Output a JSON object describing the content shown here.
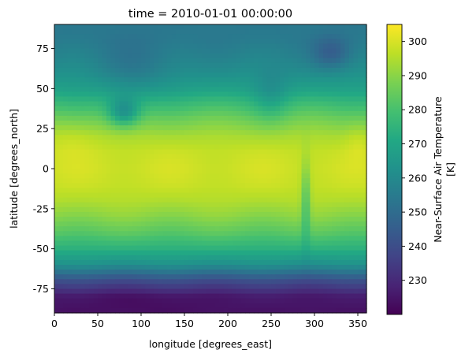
{
  "chart_data": {
    "type": "heatmap",
    "title": "time = 2010-01-01 00:00:00",
    "xlabel": "longitude [degrees_east]",
    "ylabel": "latitude [degrees_north]",
    "xlim": [
      0,
      360
    ],
    "ylim": [
      -90,
      90
    ],
    "xticks": [
      0,
      50,
      100,
      150,
      200,
      250,
      300,
      350
    ],
    "yticks": [
      -75,
      -50,
      -25,
      0,
      25,
      50,
      75
    ],
    "colorbar": {
      "label_line1": "Near-Surface Air Temperature",
      "label_line2": "[K]",
      "range": [
        220,
        305
      ],
      "ticks": [
        230,
        240,
        250,
        260,
        270,
        280,
        290,
        300
      ],
      "colormap": "viridis"
    },
    "zonal_profile": {
      "lat": [
        -90,
        -80,
        -70,
        -60,
        -50,
        -40,
        -30,
        -20,
        -10,
        0,
        10,
        20,
        30,
        40,
        50,
        60,
        70,
        80,
        90
      ],
      "values": [
        224,
        226,
        240,
        262,
        274,
        283,
        290,
        295,
        298,
        299,
        298,
        294,
        287,
        278,
        268,
        262,
        258,
        255,
        254
      ]
    },
    "grid": false,
    "colors": [
      "#440154",
      "#482475",
      "#414487",
      "#355f8d",
      "#2a788e",
      "#21918c",
      "#22a884",
      "#44bf70",
      "#7ad151",
      "#bddf26",
      "#fde725"
    ]
  }
}
